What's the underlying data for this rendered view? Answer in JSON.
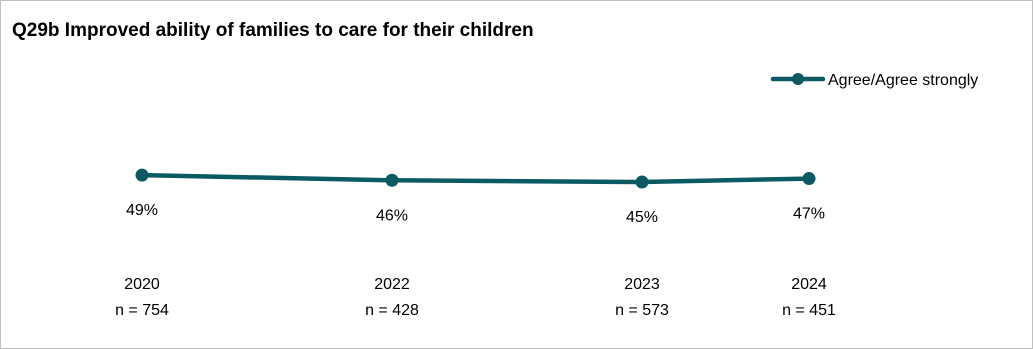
{
  "chart_data": {
    "type": "line",
    "title": "Q29b Improved ability of families to care for their children",
    "categories": [
      "2020",
      "2022",
      "2023",
      "2024"
    ],
    "n_labels": [
      "n = 754",
      "n = 428",
      "n = 573",
      "n = 451"
    ],
    "series": [
      {
        "name": "Agree/Agree strongly",
        "values": [
          49,
          46,
          45,
          47
        ],
        "labels": [
          "49%",
          "46%",
          "45%",
          "47%"
        ],
        "color": "#0b5a63"
      }
    ],
    "xlabel": "",
    "ylabel": "",
    "ylim": [
      0,
      100
    ],
    "grid": false,
    "legend_position": "top-right"
  }
}
